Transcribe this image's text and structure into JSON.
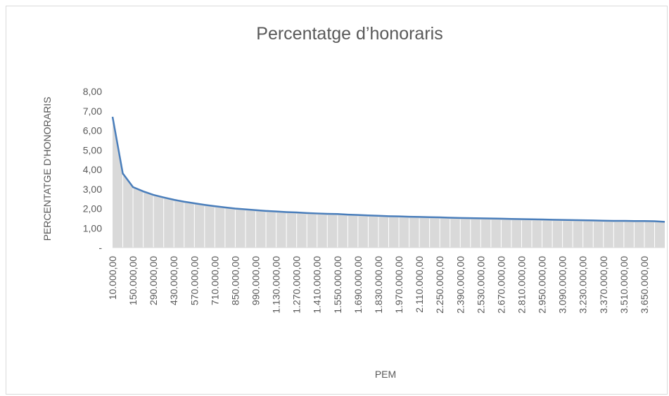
{
  "chart_data": {
    "type": "area-line",
    "title": "Percentatge d’honoraris",
    "x_label": "PEM",
    "y_label": "PERCENTATGE D’HONORARIS",
    "categories": [
      "10.000,00",
      null,
      "150.000,00",
      null,
      "290.000,00",
      null,
      "430.000,00",
      null,
      "570.000,00",
      null,
      "710.000,00",
      null,
      "850.000,00",
      null,
      "990.000,00",
      null,
      "1.130.000,00",
      null,
      "1.270.000,00",
      null,
      "1.410.000,00",
      null,
      "1.550.000,00",
      null,
      "1.690.000,00",
      null,
      "1.830.000,00",
      null,
      "1.970.000,00",
      null,
      "2.110.000,00",
      null,
      "2.250.000,00",
      null,
      "2.390.000,00",
      null,
      "2.530.000,00",
      null,
      "2.670.000,00",
      null,
      "2.810.000,00",
      null,
      "2.950.000,00",
      null,
      "3.090.000,00",
      null,
      "3.230.000,00",
      null,
      "3.370.000,00",
      null,
      "3.510.000,00",
      null,
      "3.650.000,00",
      null,
      null
    ],
    "values": [
      6.7,
      3.8,
      3.1,
      2.88,
      2.7,
      2.57,
      2.45,
      2.35,
      2.27,
      2.19,
      2.12,
      2.06,
      2.0,
      1.96,
      1.92,
      1.88,
      1.85,
      1.82,
      1.8,
      1.77,
      1.75,
      1.73,
      1.72,
      1.69,
      1.67,
      1.65,
      1.63,
      1.61,
      1.6,
      1.58,
      1.57,
      1.56,
      1.55,
      1.53,
      1.52,
      1.51,
      1.5,
      1.49,
      1.48,
      1.47,
      1.46,
      1.45,
      1.44,
      1.43,
      1.42,
      1.41,
      1.4,
      1.39,
      1.38,
      1.37,
      1.37,
      1.36,
      1.36,
      1.35,
      1.32
    ],
    "color": "#4a7ebb",
    "area_color": "#d9d9d9",
    "ylim": [
      0,
      8
    ],
    "yticks": [
      {
        "value": 0,
        "label": "-"
      },
      {
        "value": 1,
        "label": "1,00"
      },
      {
        "value": 2,
        "label": "2,00"
      },
      {
        "value": 3,
        "label": "3,00"
      },
      {
        "value": 4,
        "label": "4,00"
      },
      {
        "value": 5,
        "label": "5,00"
      },
      {
        "value": 6,
        "label": "6,00"
      },
      {
        "value": 7,
        "label": "7,00"
      },
      {
        "value": 8,
        "label": "8,00"
      }
    ]
  }
}
